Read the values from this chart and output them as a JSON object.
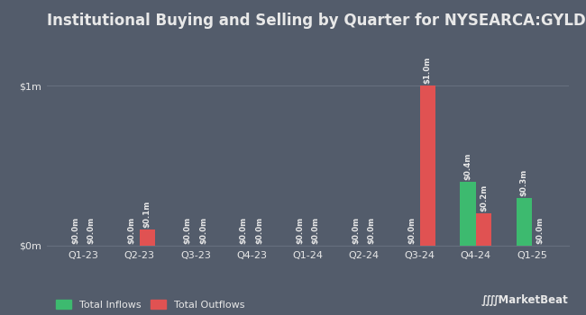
{
  "title": "Institutional Buying and Selling by Quarter for NYSEARCA:GYLD",
  "quarters": [
    "Q1-23",
    "Q2-23",
    "Q3-23",
    "Q4-23",
    "Q1-24",
    "Q2-24",
    "Q3-24",
    "Q4-24",
    "Q1-25"
  ],
  "inflows": [
    0.0,
    0.0,
    0.0,
    0.0,
    0.0,
    0.0,
    0.0,
    0.4,
    0.3
  ],
  "outflows": [
    0.0,
    0.1,
    0.0,
    0.0,
    0.0,
    0.0,
    1.0,
    0.2,
    0.0
  ],
  "inflow_labels": [
    "$0.0m",
    "$0.0m",
    "$0.0m",
    "$0.0m",
    "$0.0m",
    "$0.0m",
    "$0.0m",
    "$0.4m",
    "$0.3m"
  ],
  "outflow_labels": [
    "$0.0m",
    "$0.1m",
    "$0.0m",
    "$0.0m",
    "$0.0m",
    "$0.0m",
    "$1.0m",
    "$0.2m",
    "$0.0m"
  ],
  "inflow_color": "#3dba6f",
  "outflow_color": "#e05252",
  "background_color": "#535c6b",
  "plot_bg_color": "#535c6b",
  "text_color": "#e8e8e8",
  "grid_color": "#666f7e",
  "ylim": [
    0,
    1.3
  ],
  "yticks": [
    0,
    1.0
  ],
  "ytick_labels": [
    "$0m",
    "$1m"
  ],
  "bar_width": 0.28,
  "legend_inflow": "Total Inflows",
  "legend_outflow": "Total Outflows",
  "title_fontsize": 12,
  "label_fontsize": 6.2,
  "tick_fontsize": 8,
  "legend_fontsize": 8
}
